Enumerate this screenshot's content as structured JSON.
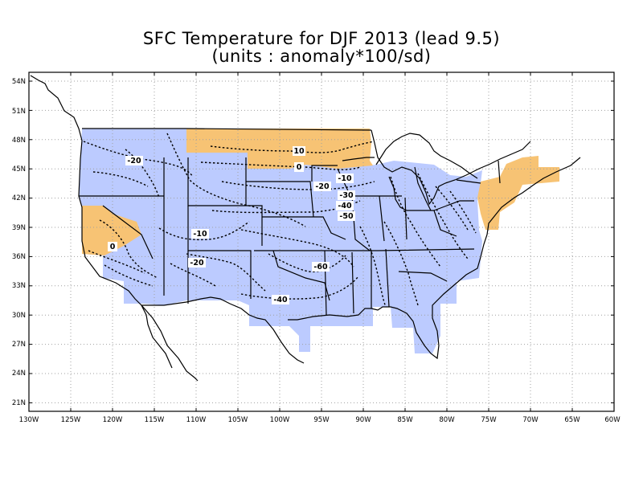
{
  "title": "SFC Temperature for DJF 2013 (lead 9.5)",
  "subtitle": "(units : anomaly*100/sd)",
  "lat_labels": [
    "54N",
    "51N",
    "48N",
    "45N",
    "42N",
    "39N",
    "36N",
    "33N",
    "30N",
    "27N",
    "24N",
    "21N"
  ],
  "lon_labels": [
    "130W",
    "125W",
    "120W",
    "115W",
    "110W",
    "105W",
    "100W",
    "95W",
    "90W",
    "85W",
    "80W",
    "75W",
    "70W",
    "65W",
    "60W"
  ],
  "contour_labels": [
    "-20",
    "10",
    "0",
    "-10",
    "-20",
    "-30",
    "-40",
    "-50",
    "0",
    "-10",
    "-20",
    "-60",
    "-40"
  ],
  "colors": {
    "negative_shade": "#bccbff",
    "positive_shade": "#f7c374",
    "grid": "#a0a0a0"
  }
}
